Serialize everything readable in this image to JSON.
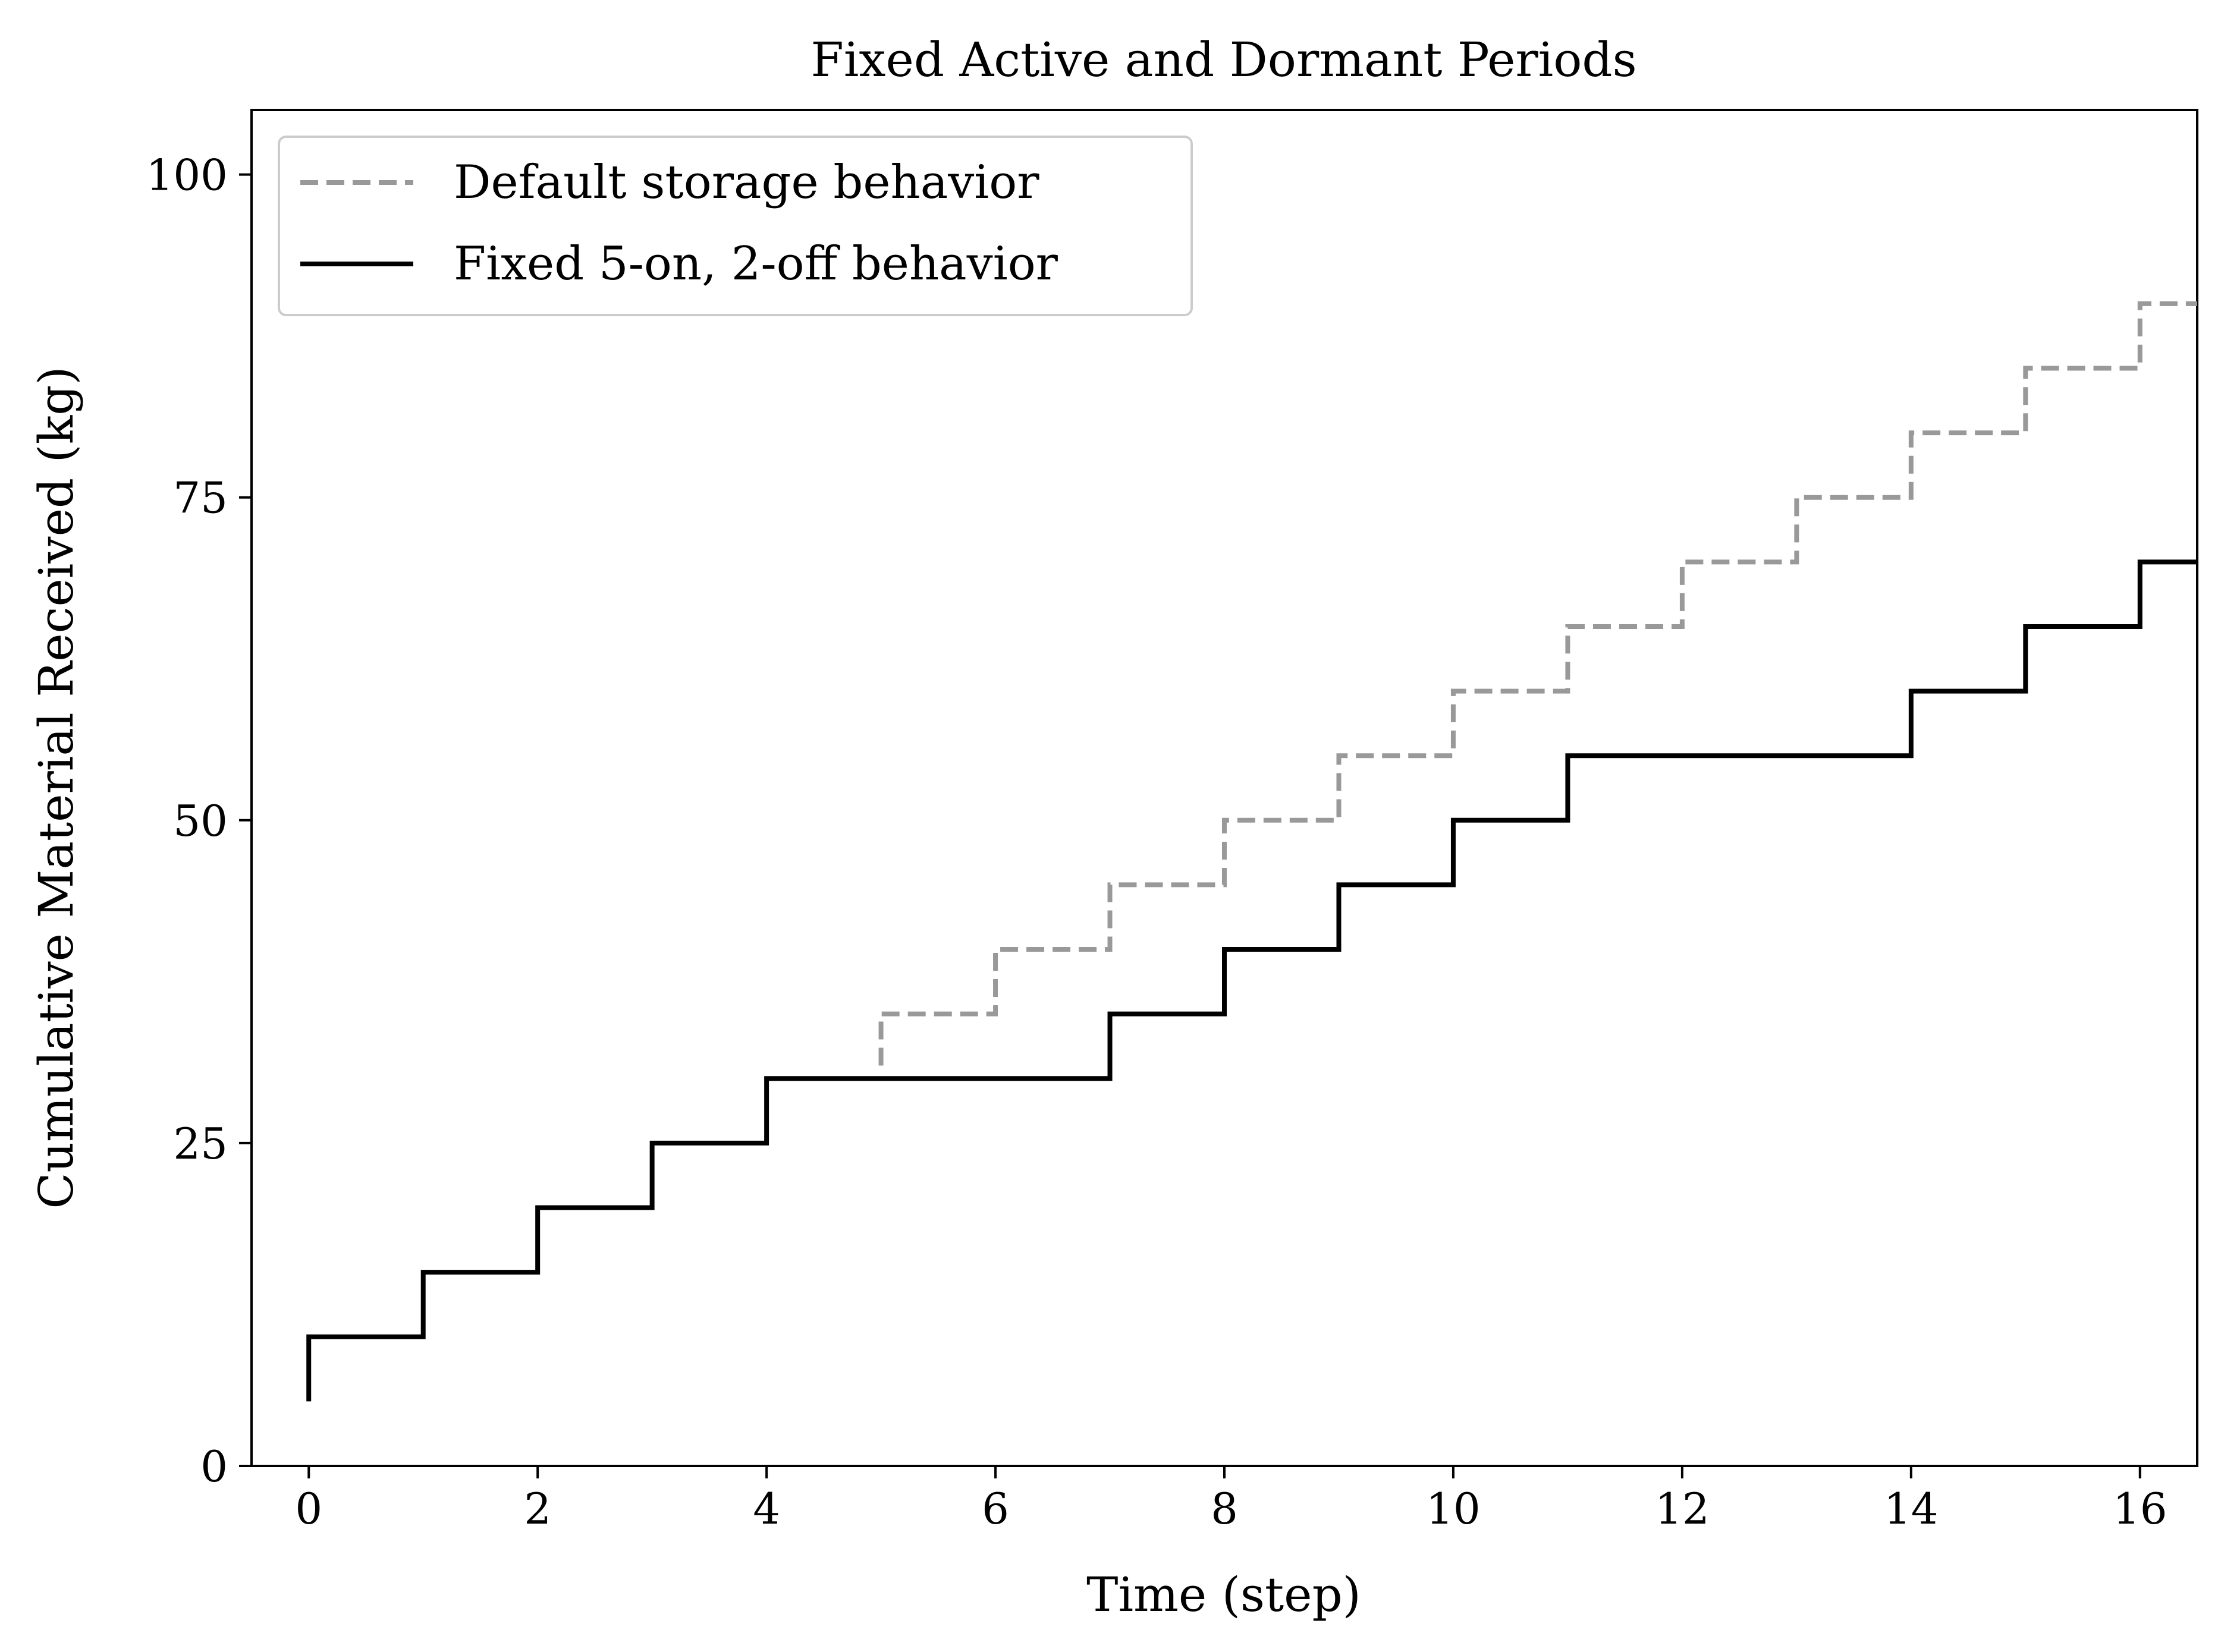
{
  "chart_data": {
    "type": "line",
    "title": "Fixed Active and Dormant Periods",
    "xlabel": "Time (step)",
    "ylabel": "Cumulative Material Received (kg)",
    "xlim": [
      -0.5,
      16.5
    ],
    "ylim": [
      0,
      105
    ],
    "xticks": [
      0,
      2,
      4,
      6,
      8,
      10,
      12,
      14,
      16
    ],
    "yticks": [
      0,
      25,
      50,
      75,
      100
    ],
    "grid": false,
    "legend_position": "upper-left",
    "step": "post",
    "series": [
      {
        "name": "Default storage behavior",
        "style": "dashed",
        "color": "#999999",
        "x": [
          5,
          6,
          7,
          8,
          9,
          10,
          11,
          12,
          13,
          14,
          15,
          16,
          16.5
        ],
        "values": [
          35,
          40,
          45,
          50,
          55,
          60,
          65,
          70,
          75,
          80,
          85,
          90,
          90
        ],
        "start_y": 31
      },
      {
        "name": "Fixed 5-on, 2-off behavior",
        "style": "solid",
        "color": "#000000",
        "x": [
          0,
          1,
          2,
          3,
          4,
          5,
          6,
          7,
          8,
          9,
          10,
          11,
          12,
          13,
          14,
          15,
          16,
          16.5
        ],
        "values": [
          10,
          15,
          20,
          25,
          30,
          30,
          30,
          35,
          40,
          45,
          50,
          55,
          55,
          55,
          60,
          65,
          70,
          70
        ],
        "start_y": 5
      }
    ]
  }
}
